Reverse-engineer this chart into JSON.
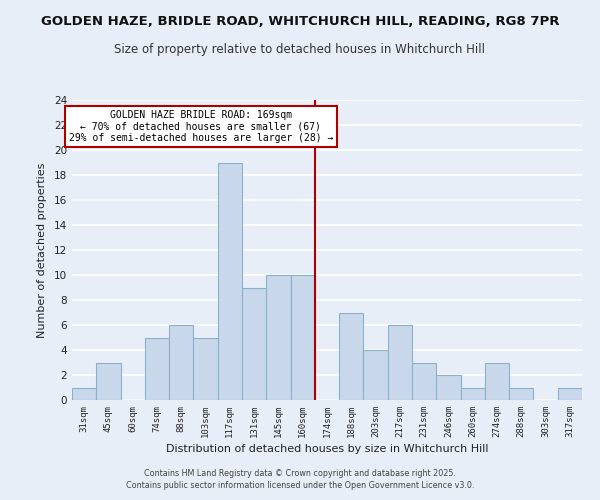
{
  "title1": "GOLDEN HAZE, BRIDLE ROAD, WHITCHURCH HILL, READING, RG8 7PR",
  "title2": "Size of property relative to detached houses in Whitchurch Hill",
  "xlabel": "Distribution of detached houses by size in Whitchurch Hill",
  "ylabel": "Number of detached properties",
  "bin_labels": [
    "31sqm",
    "45sqm",
    "60sqm",
    "74sqm",
    "88sqm",
    "103sqm",
    "117sqm",
    "131sqm",
    "145sqm",
    "160sqm",
    "174sqm",
    "188sqm",
    "203sqm",
    "217sqm",
    "231sqm",
    "246sqm",
    "260sqm",
    "274sqm",
    "288sqm",
    "303sqm",
    "317sqm"
  ],
  "bar_heights": [
    1,
    3,
    0,
    5,
    6,
    5,
    19,
    9,
    10,
    10,
    0,
    7,
    4,
    6,
    3,
    2,
    1,
    3,
    1,
    0,
    1
  ],
  "bar_color": "#c8d8ea",
  "bar_edge_color": "#8ab0cc",
  "vline_x": 9.5,
  "vline_color": "#aa0000",
  "annotation_box_title": "GOLDEN HAZE BRIDLE ROAD: 169sqm",
  "annotation_line1": "← 70% of detached houses are smaller (67)",
  "annotation_line2": "29% of semi-detached houses are larger (28) →",
  "annotation_box_color": "#ffffff",
  "annotation_border_color": "#aa0000",
  "ylim": [
    0,
    24
  ],
  "yticks": [
    0,
    2,
    4,
    6,
    8,
    10,
    12,
    14,
    16,
    18,
    20,
    22,
    24
  ],
  "footnote1": "Contains HM Land Registry data © Crown copyright and database right 2025.",
  "footnote2": "Contains public sector information licensed under the Open Government Licence v3.0.",
  "bg_color": "#e8eef8",
  "grid_color": "#ffffff",
  "title1_fontsize": 9.5,
  "title2_fontsize": 8.5
}
